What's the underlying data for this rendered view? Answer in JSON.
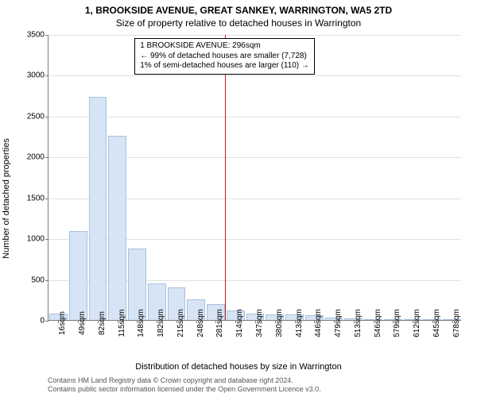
{
  "titles": {
    "line1": "1, BROOKSIDE AVENUE, GREAT SANKEY, WARRINGTON, WA5 2TD",
    "line2": "Size of property relative to detached houses in Warrington"
  },
  "axes": {
    "ylabel": "Number of detached properties",
    "xlabel": "Distribution of detached houses by size in Warrington"
  },
  "credits": {
    "line1": "Contains HM Land Registry data © Crown copyright and database right 2024.",
    "line2": "Contains public sector information licensed under the Open Government Licence v3.0."
  },
  "annotation": {
    "line1": "1 BROOKSIDE AVENUE: 296sqm",
    "line2": "← 99% of detached houses are smaller (7,728)",
    "line3": "1% of semi-detached houses are larger (110) →"
  },
  "histogram": {
    "type": "histogram",
    "ylim": [
      0,
      3500
    ],
    "yticks": [
      0,
      500,
      1000,
      1500,
      2000,
      2500,
      3000,
      3500
    ],
    "xtick_labels": [
      "16sqm",
      "49sqm",
      "82sqm",
      "115sqm",
      "148sqm",
      "182sqm",
      "215sqm",
      "248sqm",
      "281sqm",
      "314sqm",
      "347sqm",
      "380sqm",
      "413sqm",
      "446sqm",
      "479sqm",
      "513sqm",
      "546sqm",
      "579sqm",
      "612sqm",
      "645sqm",
      "678sqm"
    ],
    "bar_values": [
      80,
      1090,
      2730,
      2260,
      880,
      450,
      400,
      250,
      190,
      120,
      80,
      70,
      70,
      55,
      25,
      15,
      12,
      8,
      5,
      5,
      3
    ],
    "bar_fill": "#d6e4f5",
    "bar_stroke": "#a9c1dd",
    "grid_color": "#e0e0e0",
    "axis_color": "#7a7a7a",
    "marker_value_sqm": 296,
    "marker_color": "#c81e1e",
    "background_color": "#ffffff",
    "title_fontsize": 12,
    "label_fontsize": 11,
    "tick_fontsize": 10,
    "xtick_rotation_deg": 90
  }
}
